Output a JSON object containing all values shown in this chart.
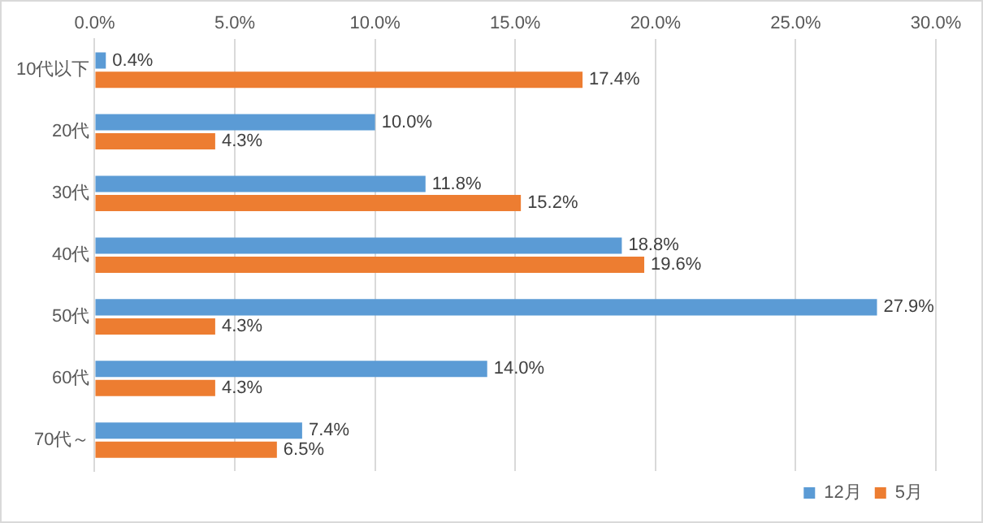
{
  "chart_data": {
    "type": "bar",
    "orientation": "horizontal",
    "categories": [
      "10代以下",
      "20代",
      "30代",
      "40代",
      "50代",
      "60代",
      "70代～"
    ],
    "series": [
      {
        "name": "12月",
        "color": "#5b9bd5",
        "values": [
          0.4,
          10.0,
          11.8,
          18.8,
          27.9,
          14.0,
          7.4
        ],
        "value_labels": [
          "0.4%",
          "10.0%",
          "11.8%",
          "18.8%",
          "27.9%",
          "14.0%",
          "7.4%"
        ]
      },
      {
        "name": "5月",
        "color": "#ed7d31",
        "values": [
          17.4,
          4.3,
          15.2,
          19.6,
          4.3,
          4.3,
          6.5
        ],
        "value_labels": [
          "17.4%",
          "4.3%",
          "15.2%",
          "19.6%",
          "4.3%",
          "4.3%",
          "6.5%"
        ]
      }
    ],
    "xlim": [
      0,
      30
    ],
    "xticks": [
      {
        "value": 0,
        "label": "0.0%"
      },
      {
        "value": 5,
        "label": "5.0%"
      },
      {
        "value": 10,
        "label": "10.0%"
      },
      {
        "value": 15,
        "label": "15.0%"
      },
      {
        "value": 20,
        "label": "20.0%"
      },
      {
        "value": 25,
        "label": "25.0%"
      },
      {
        "value": 30,
        "label": "30.0%"
      }
    ],
    "grid": "x",
    "legend": "bottom right"
  }
}
